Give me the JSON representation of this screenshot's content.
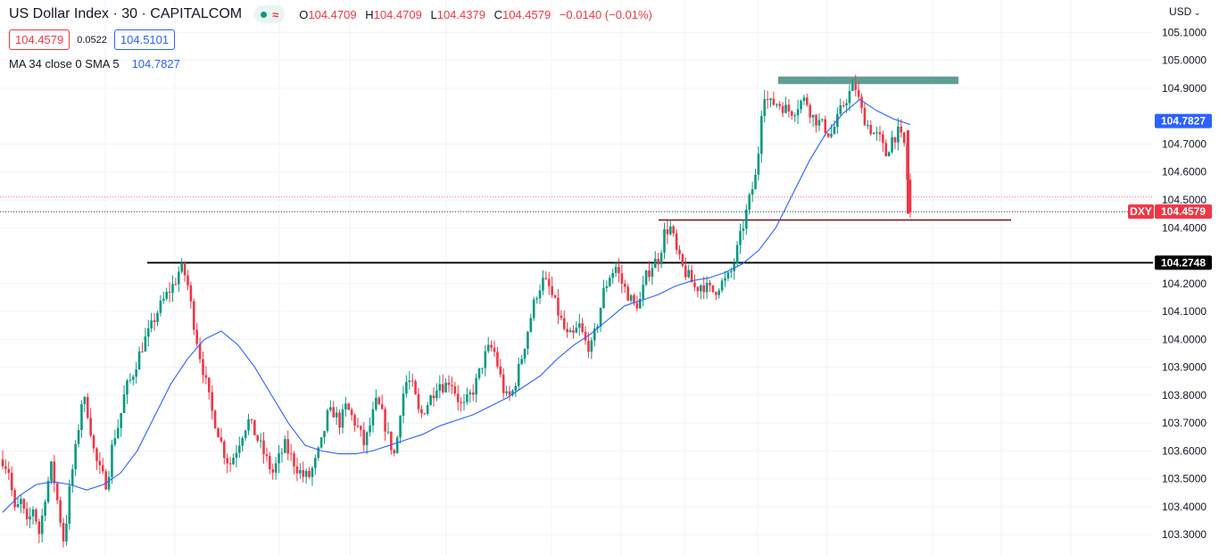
{
  "legend": {
    "symbol_title": "US Dollar Index · 30 · CAPITALCOM",
    "status_icons": [
      "green-dot-icon",
      "wave-icon"
    ],
    "open_key": "O",
    "open": "104.4709",
    "high_key": "H",
    "high": "104.4709",
    "low_key": "L",
    "low": "104.4379",
    "close_key": "C",
    "close": "104.4579",
    "change": "−0.0140 (−0.01%)",
    "sell_price": "104.4579",
    "spread": "0.0522",
    "buy_price": "104.5101",
    "indicator_label": "MA 34 close 0 SMA 5",
    "indicator_value": "104.7827"
  },
  "currency_menu": "USD",
  "colors": {
    "up": "#089981",
    "down": "#f23645",
    "ma": "#2962ff",
    "resistance_zone": "#5f9e95",
    "support_red": "#7a1a22",
    "support_black": "#000000"
  },
  "price_badges": {
    "ma": "104.7827",
    "symbol": "DXY",
    "last": "104.4579",
    "support": "104.2748"
  },
  "chart_data": {
    "type": "candlestick",
    "title": "US Dollar Index · 30 · CAPITALCOM",
    "interval": "30",
    "y_axis": {
      "ticks": [
        "105.1000",
        "105.0000",
        "104.9000",
        "104.7000",
        "104.6000",
        "104.5000",
        "104.4000",
        "104.2000",
        "104.1000",
        "104.0000",
        "103.9000",
        "103.8000",
        "103.7000",
        "103.6000",
        "103.5000",
        "103.4000",
        "103.3000"
      ],
      "ylim": [
        103.25,
        105.15
      ],
      "position": "right"
    },
    "last_price": 104.4579,
    "moving_average": {
      "name": "MA 34 close 0 SMA 5",
      "last": 104.7827
    },
    "horizontal_levels": [
      {
        "kind": "zone",
        "price_low": 104.915,
        "price_high": 104.942,
        "color": "#5f9e95"
      },
      {
        "kind": "line",
        "price": 104.428,
        "color": "#7a1a22"
      },
      {
        "kind": "line",
        "price": 104.2748,
        "color": "#000000"
      }
    ],
    "price_path": [
      103.57,
      103.53,
      103.38,
      103.42,
      103.33,
      103.4,
      103.3,
      103.45,
      103.55,
      103.41,
      103.27,
      103.48,
      103.62,
      103.8,
      103.73,
      103.58,
      103.52,
      103.48,
      103.64,
      103.7,
      103.82,
      103.86,
      103.93,
      103.99,
      104.03,
      104.09,
      104.13,
      104.17,
      104.2,
      104.26,
      104.22,
      104.08,
      103.96,
      103.86,
      103.75,
      103.68,
      103.6,
      103.55,
      103.6,
      103.66,
      103.71,
      103.67,
      103.62,
      103.57,
      103.52,
      103.57,
      103.62,
      103.58,
      103.54,
      103.51,
      103.51,
      103.56,
      103.63,
      103.73,
      103.74,
      103.7,
      103.76,
      103.72,
      103.68,
      103.62,
      103.7,
      103.78,
      103.72,
      103.64,
      103.58,
      103.78,
      103.86,
      103.82,
      103.72,
      103.76,
      103.8,
      103.85,
      103.83,
      103.86,
      103.8,
      103.75,
      103.79,
      103.83,
      103.9,
      103.96,
      103.97,
      103.88,
      103.79,
      103.8,
      103.88,
      103.97,
      104.07,
      104.16,
      104.21,
      104.19,
      104.13,
      104.07,
      104.01,
      104.01,
      104.05,
      103.99,
      103.97,
      104.06,
      104.17,
      104.23,
      104.26,
      104.2,
      104.16,
      104.12,
      104.14,
      104.23,
      104.27,
      104.29,
      104.39,
      104.4,
      104.3,
      104.25,
      104.22,
      104.18,
      104.2,
      104.18,
      104.17,
      104.2,
      104.21,
      104.25,
      104.34,
      104.43,
      104.52,
      104.6,
      104.9,
      104.84,
      104.85,
      104.84,
      104.82,
      104.82,
      104.85,
      104.86,
      104.8,
      104.78,
      104.76,
      104.73,
      104.78,
      104.84,
      104.88,
      104.91,
      104.82,
      104.77,
      104.74,
      104.72,
      104.66,
      104.72,
      104.74,
      104.7,
      104.45
    ],
    "ma_path": [
      103.38,
      103.44,
      103.48,
      103.49,
      103.48,
      103.46,
      103.48,
      103.52,
      103.6,
      103.72,
      103.84,
      103.93,
      104.0,
      104.03,
      103.98,
      103.9,
      103.8,
      103.7,
      103.62,
      103.6,
      103.59,
      103.59,
      103.6,
      103.62,
      103.64,
      103.66,
      103.69,
      103.71,
      103.73,
      103.76,
      103.79,
      103.83,
      103.87,
      103.93,
      103.98,
      104.02,
      104.07,
      104.12,
      104.14,
      104.16,
      104.19,
      104.21,
      104.22,
      104.24,
      104.27,
      104.32,
      104.4,
      104.52,
      104.64,
      104.74,
      104.81,
      104.86,
      104.82,
      104.79,
      104.77
    ]
  }
}
